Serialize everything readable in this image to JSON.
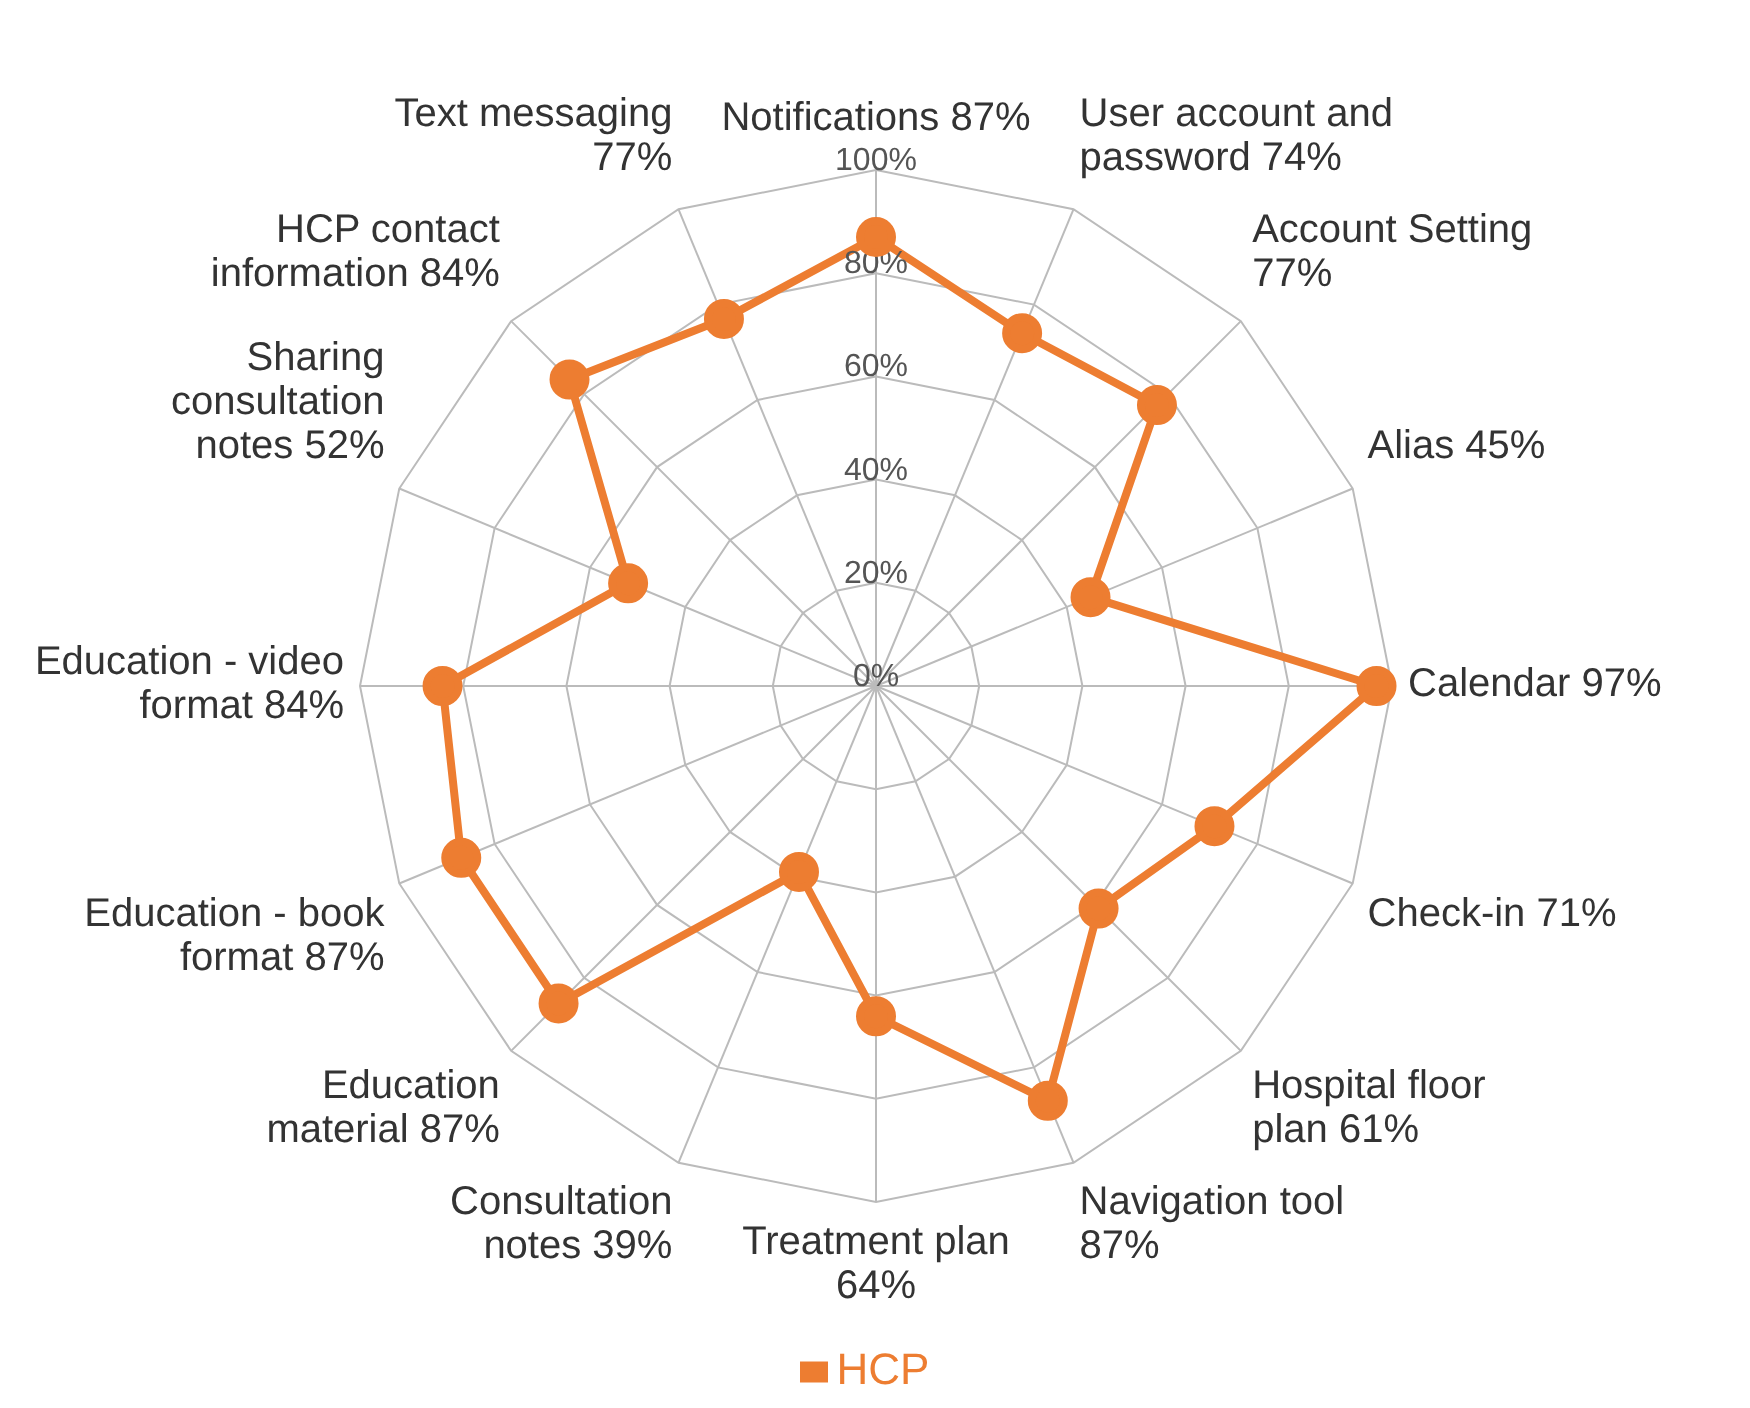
{
  "chart_data": {
    "type": "radar",
    "categories": [
      "Notifications 87%",
      "User account and password 74%",
      "Account Setting 77%",
      "Alias 45%",
      "Calendar 97%",
      "Check-in 71%",
      "Hospital floor plan 61%",
      "Navigation tool 87%",
      "Treatment plan 64%",
      "Consultation notes 39%",
      "Education material 87%",
      "Education - book format 87%",
      "Education - video format 84%",
      "Sharing consultation notes 52%",
      "HCP contact information 84%",
      "Text messaging 77%"
    ],
    "series": [
      {
        "name": "HCP",
        "color": "#ed7d31",
        "values": [
          87,
          74,
          77,
          45,
          97,
          71,
          61,
          87,
          64,
          39,
          87,
          87,
          84,
          52,
          84,
          77
        ]
      }
    ],
    "ylim": [
      0,
      100
    ],
    "yticks": [
      {
        "value": 0,
        "label": "0%"
      },
      {
        "value": 20,
        "label": "20%"
      },
      {
        "value": 40,
        "label": "40%"
      },
      {
        "value": 60,
        "label": "60%"
      },
      {
        "value": 80,
        "label": "80%"
      },
      {
        "value": 100,
        "label": "100%"
      }
    ],
    "grid": true,
    "legend": "bottom",
    "marker": "circle",
    "line_style": "solid"
  }
}
